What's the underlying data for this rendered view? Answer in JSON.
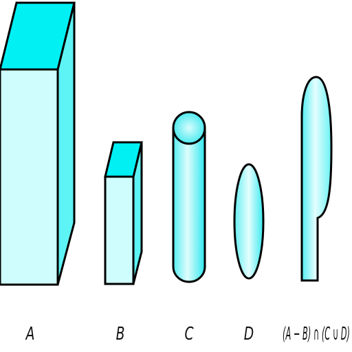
{
  "diagram": {
    "colors": {
      "fill_light": "#cffcfc",
      "fill_mid": "#5ef3f4",
      "fill_bright": "#00f0f4",
      "stroke": "#000000"
    },
    "shapes": [
      {
        "id": "A",
        "kind": "box",
        "label": "A"
      },
      {
        "id": "B",
        "kind": "box",
        "label": "B"
      },
      {
        "id": "C",
        "kind": "cylinder",
        "label": "C"
      },
      {
        "id": "D",
        "kind": "ellipsoid",
        "label": "D"
      },
      {
        "id": "result",
        "kind": "composite",
        "label": "(A − B) ∩ (C ∪ D)"
      }
    ]
  }
}
